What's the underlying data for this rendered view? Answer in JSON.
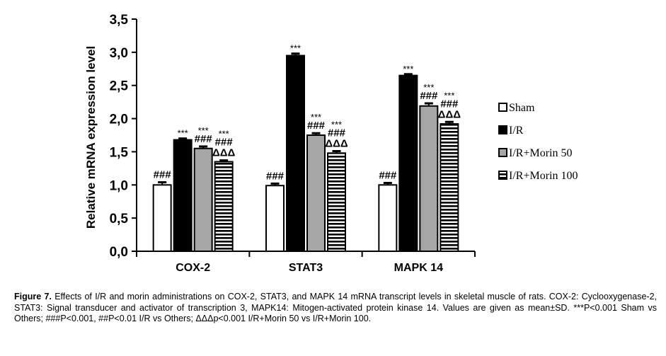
{
  "chart_data": {
    "type": "bar",
    "title": "",
    "ylabel": "Relative mRNA expression level",
    "xlabel": "",
    "ylim": [
      0,
      3.5
    ],
    "yticks": [
      "0,0",
      "0,5",
      "1,0",
      "1,5",
      "2,0",
      "2,5",
      "3,0",
      "3,5"
    ],
    "ytick_values": [
      0,
      0.5,
      1.0,
      1.5,
      2.0,
      2.5,
      3.0,
      3.5
    ],
    "categories": [
      "COX-2",
      "STAT3",
      "MAPK 14"
    ],
    "legend_position": "right",
    "series": [
      {
        "name": "Sham",
        "values": [
          1.0,
          0.99,
          1.0
        ],
        "errors": [
          0.04,
          0.03,
          0.03
        ],
        "fill": "white",
        "annotations": [
          [
            "###"
          ],
          [
            "###"
          ],
          [
            "###"
          ]
        ]
      },
      {
        "name": "I/R",
        "values": [
          1.68,
          2.95,
          2.65
        ],
        "errors": [
          0.02,
          0.03,
          0.02
        ],
        "fill": "black",
        "annotations": [
          [
            "***"
          ],
          [
            "***"
          ],
          [
            "***"
          ]
        ]
      },
      {
        "name": "I/R+Morin 50",
        "values": [
          1.55,
          1.75,
          2.19
        ],
        "errors": [
          0.03,
          0.03,
          0.04
        ],
        "fill": "gray",
        "annotations": [
          [
            "***",
            "###"
          ],
          [
            "***",
            "###"
          ],
          [
            "***",
            "###"
          ]
        ]
      },
      {
        "name": "I/R+Morin 100",
        "values": [
          1.35,
          1.48,
          1.92
        ],
        "errors": [
          0.02,
          0.03,
          0.03
        ],
        "fill": "striped",
        "annotations": [
          [
            "***",
            "###",
            "ΔΔΔ"
          ],
          [
            "***",
            "###",
            "ΔΔΔ"
          ],
          [
            "***",
            "###",
            "ΔΔΔ"
          ]
        ]
      }
    ]
  },
  "colors": {
    "gray_fill": "#a6a6a6",
    "black_fill": "#000000",
    "stripe": "#000000"
  },
  "caption": {
    "label": "Figure 7.",
    "text": " Effects of I/R and morin administrations on COX-2, STAT3, and MAPK 14 mRNA transcript levels in skeletal muscle of rats. COX-2: Cyclooxygenase-2, STAT3: Signal transducer and activator of transcription 3, MAPK14: Mitogen-activated protein kinase 14. Values are given as mean±SD. ***P<0.001 Sham vs Others; ###P<0.001, ##P<0.01 I/R vs Others; ΔΔΔp<0.001 I/R+Morin 50 vs I/R+Morin 100."
  }
}
